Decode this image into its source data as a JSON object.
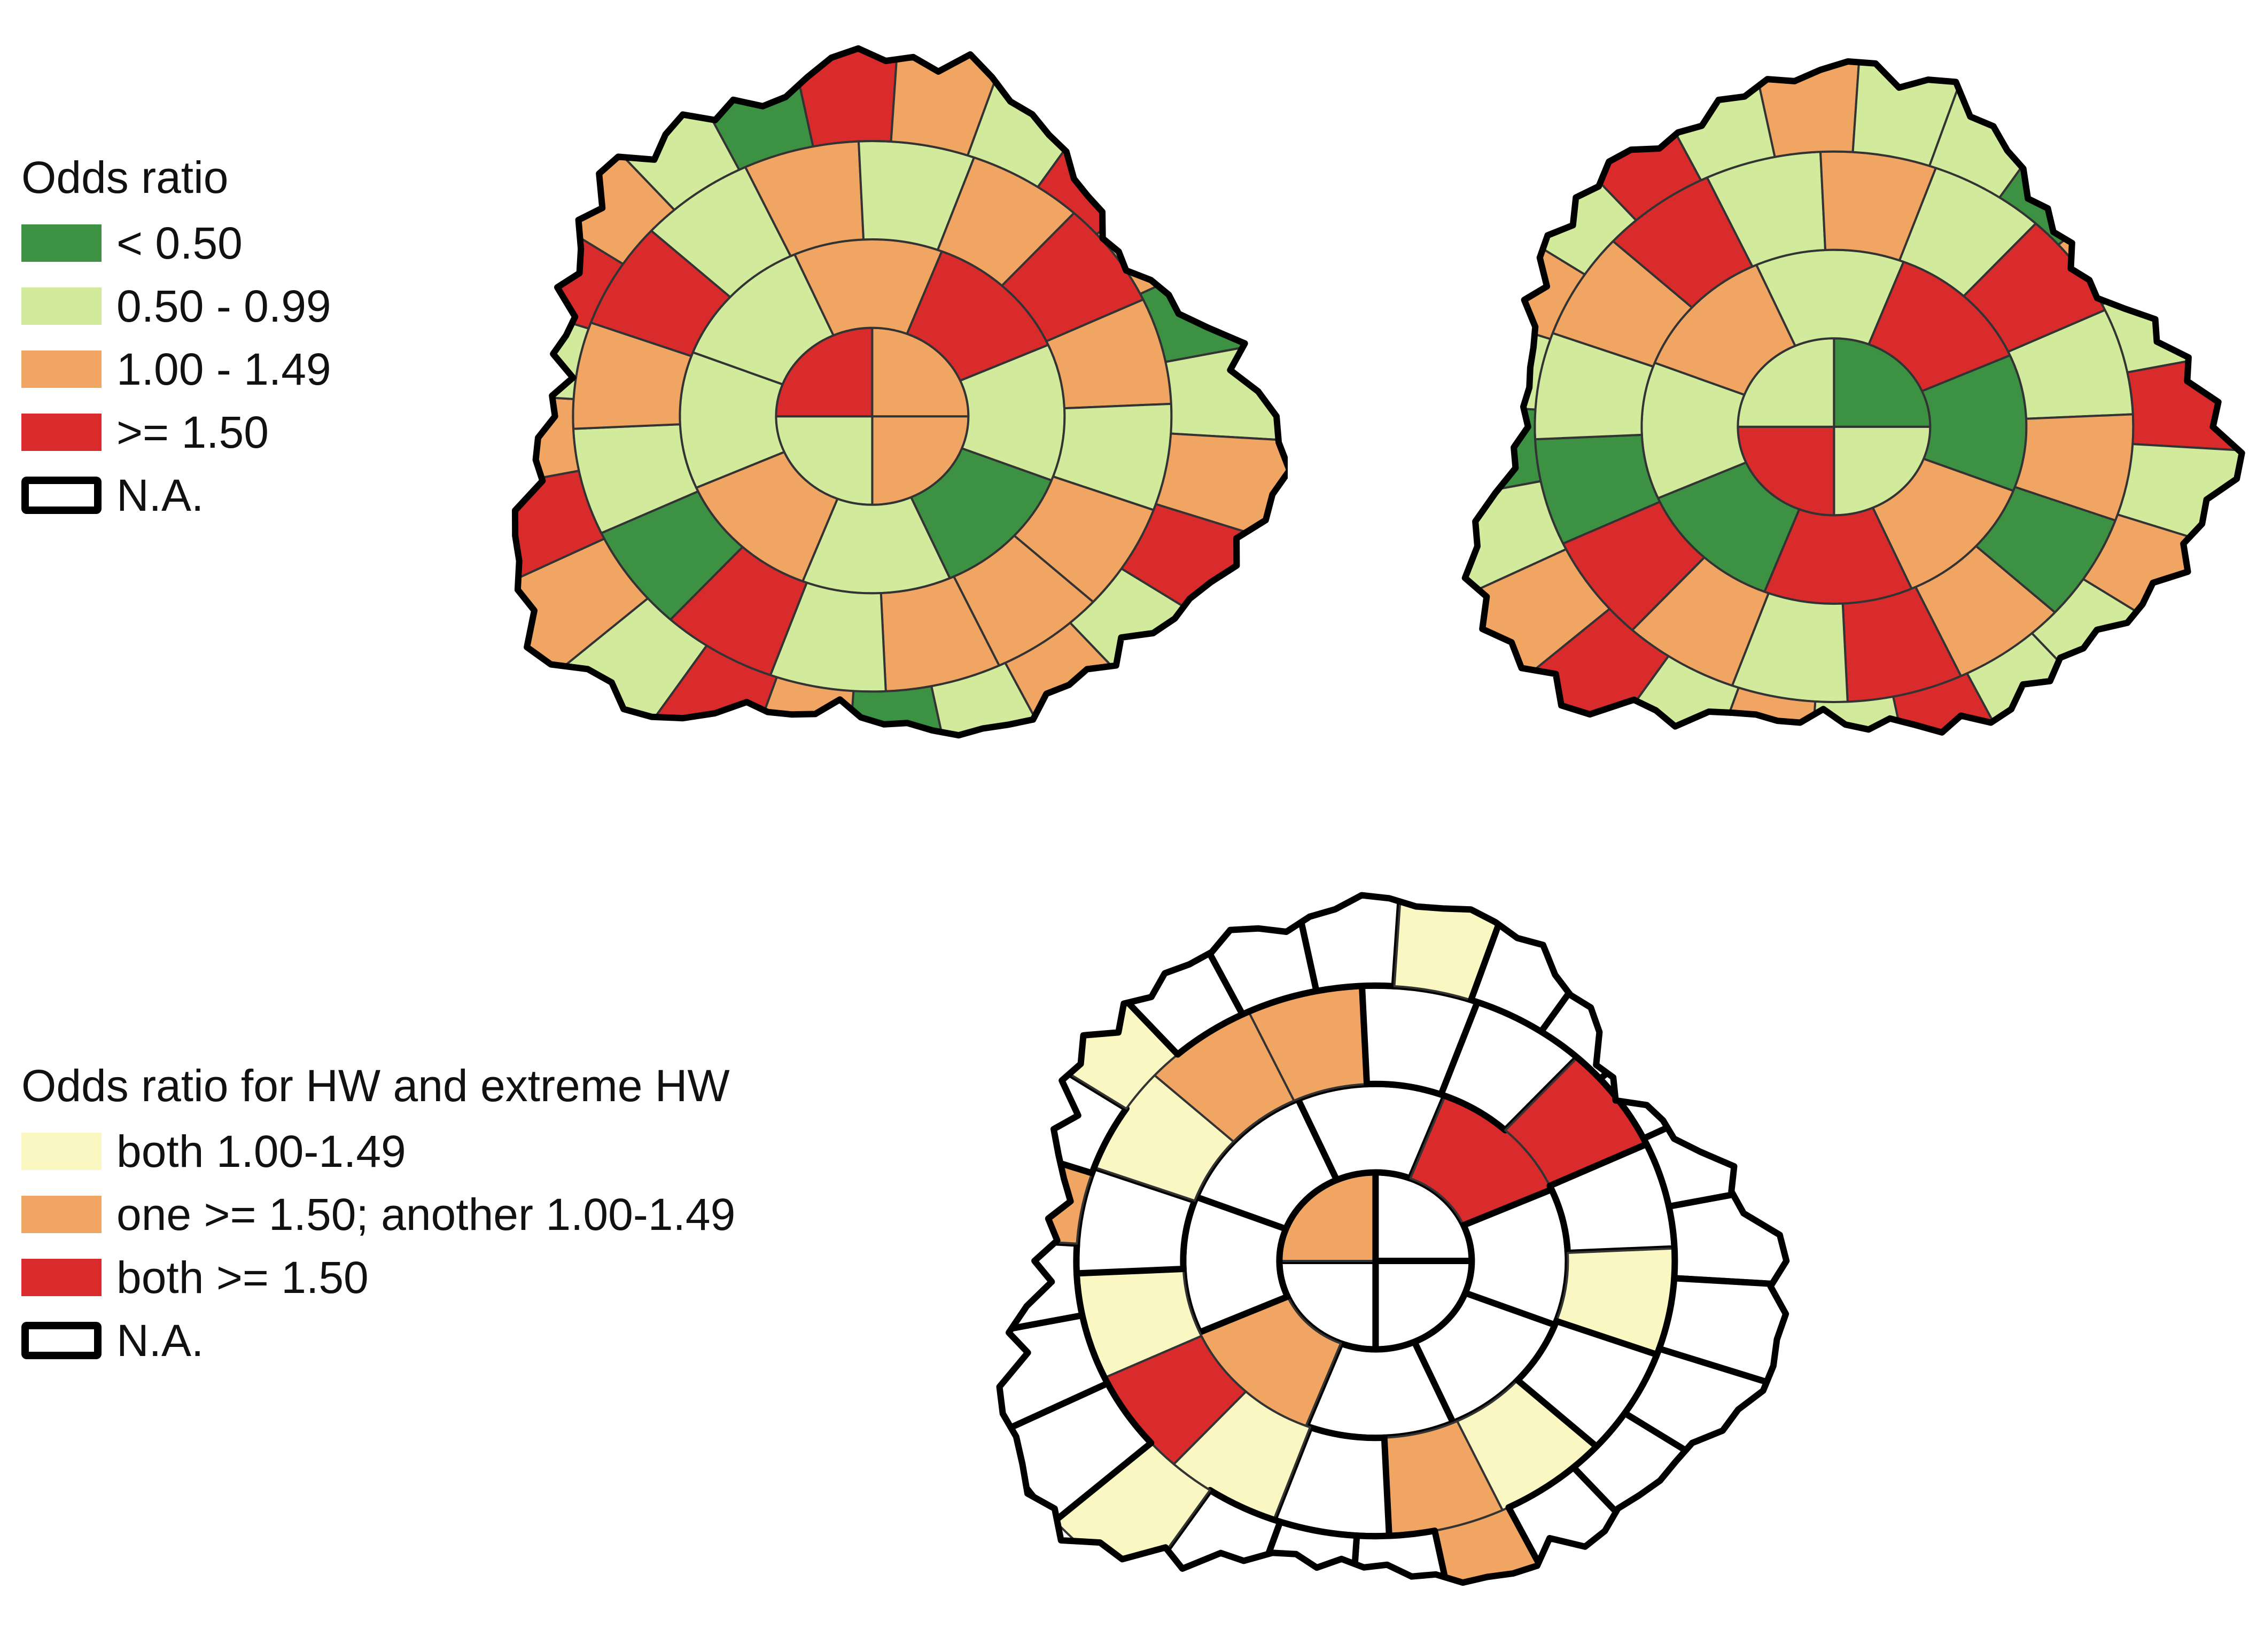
{
  "colors": {
    "lt_050": "#3d9142",
    "r050_099": "#d1ea9c",
    "r100_149": "#f1a563",
    "ge150": "#d92b2b",
    "both_100_149": "#fbf7c3",
    "one_ge150": "#f1a563",
    "both_ge150": "#d92b2b",
    "na": "#ffffff"
  },
  "legend_top": {
    "title": "Odds ratio",
    "items": [
      {
        "label": "< 0.50",
        "color": "#3d9142",
        "icon": "swatch"
      },
      {
        "label": "0.50 - 0.99",
        "color": "#d1ea9c",
        "icon": "swatch"
      },
      {
        "label": "1.00 - 1.49",
        "color": "#f1a563",
        "icon": "swatch"
      },
      {
        "label": ">= 1.50",
        "color": "#d92b2b",
        "icon": "swatch"
      },
      {
        "label": "N.A.",
        "color": "#ffffff",
        "icon": "outline-swatch"
      }
    ]
  },
  "legend_bottom": {
    "title": "Odds ratio for HW and extreme HW",
    "items": [
      {
        "label": "both 1.00-1.49",
        "color": "#fbf7c3",
        "icon": "swatch"
      },
      {
        "label": "one >= 1.50; another 1.00-1.49",
        "color": "#f1a563",
        "icon": "swatch"
      },
      {
        "label": "both >= 1.50",
        "color": "#d92b2b",
        "icon": "swatch"
      },
      {
        "label": "N.A.",
        "color": "#ffffff",
        "icon": "outline-swatch"
      }
    ]
  },
  "maps": [
    {
      "zone_classes": [
        "r100_149",
        "r050_099",
        "ge150",
        "r100_149",
        "lt_050",
        "r050_099",
        "r100_149",
        "r050_099",
        "r050_099",
        "r100_149",
        "ge150",
        "r050_099",
        "r100_149",
        "r100_149",
        "r050_099",
        "ge150",
        "lt_050",
        "r050_099",
        "r100_149",
        "ge150",
        "r050_099",
        "r100_149",
        "r050_099",
        "r100_149",
        "ge150",
        "r100_149",
        "r050_099",
        "r100_149",
        "r050_099",
        "lt_050",
        "r100_149",
        "ge150",
        "r050_099",
        "r100_149",
        "ge150",
        "r100_149",
        "r050_099",
        "ge150",
        "r100_149",
        "r050_099",
        "lt_050",
        "ge150",
        "r100_149",
        "r050_099",
        "ge150",
        "r100_149",
        "lt_050",
        "r050_099",
        "r100_149",
        "ge150",
        "r050_099",
        "r100_149"
      ]
    },
    {
      "zone_classes": [
        "r050_099",
        "ge150",
        "r050_099",
        "lt_050",
        "r100_149",
        "ge150",
        "lt_050",
        "r050_099",
        "r100_149",
        "r050_099",
        "ge150",
        "lt_050",
        "r100_149",
        "ge150",
        "r050_099",
        "r100_149",
        "ge150",
        "lt_050",
        "r050_099",
        "r100_149",
        "ge150",
        "r050_099",
        "r100_149",
        "r050_099",
        "ge150",
        "r050_099",
        "r100_149",
        "lt_050",
        "ge150",
        "r050_099",
        "r100_149",
        "r050_099",
        "ge150",
        "r100_149",
        "r050_099",
        "lt_050",
        "r050_099",
        "r100_149",
        "r050_099",
        "ge150",
        "r050_099",
        "r100_149",
        "r050_099",
        "r050_099",
        "lt_050",
        "r100_149",
        "r050_099",
        "ge150",
        "r050_099",
        "r100_149",
        "r050_099",
        "r050_099"
      ]
    },
    {
      "zone_classes": [
        "na",
        "na",
        "one_ge150",
        "na",
        "na",
        "na",
        "one_ge150",
        "na",
        "na",
        "na",
        "both_ge150",
        "na",
        "both_100_149",
        "one_ge150",
        "na",
        "both_100_149",
        "both_ge150",
        "both_100_149",
        "na",
        "both_100_149",
        "one_ge150",
        "one_ge150",
        "na",
        "na",
        "both_ge150",
        "na",
        "both_100_149",
        "na",
        "one_ge150",
        "na",
        "na",
        "na",
        "both_100_149",
        "na",
        "na",
        "na",
        "one_ge150",
        "na",
        "both_100_149",
        "na",
        "na",
        "na",
        "both_100_149",
        "na",
        "na",
        "na",
        "na",
        "na",
        "na",
        "na",
        "na",
        "na"
      ]
    }
  ]
}
